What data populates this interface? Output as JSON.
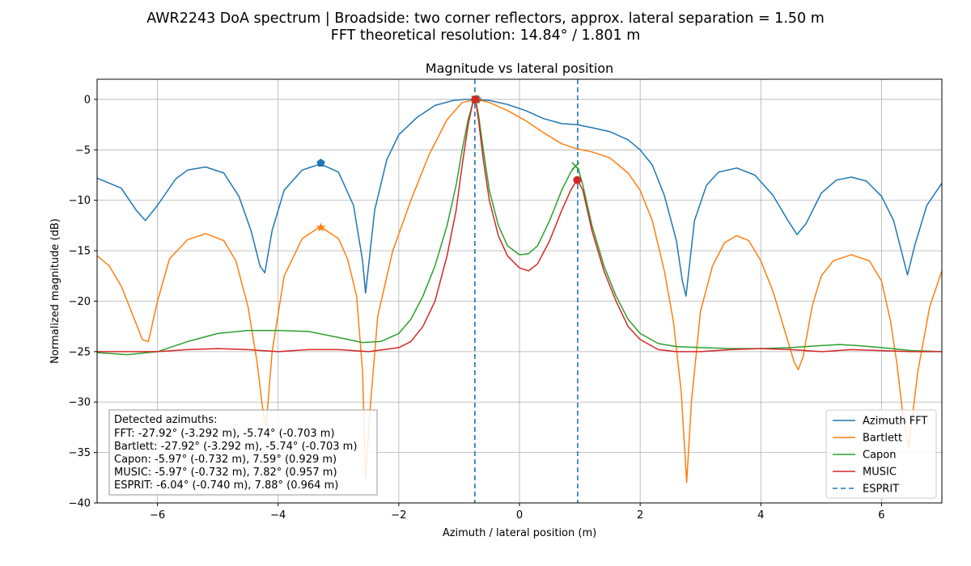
{
  "chart_data": {
    "type": "line",
    "suptitle_line1": "AWR2243 DoA spectrum | Broadside: two corner reflectors, approx. lateral separation = 1.50 m",
    "suptitle_line2": "FFT theoretical resolution: 14.84° / 1.801 m",
    "title": "Magnitude vs lateral position",
    "xlabel": "Azimuth / lateral position (m)",
    "ylabel": "Normalized magnitude (dB)",
    "xlim": [
      -7.0,
      7.0
    ],
    "ylim": [
      -40,
      2
    ],
    "xticks": [
      -6,
      -4,
      -2,
      0,
      2,
      4,
      6
    ],
    "xtick_labels": [
      "−6",
      "−4",
      "−2",
      "0",
      "2",
      "4",
      "6"
    ],
    "yticks": [
      0,
      -5,
      -10,
      -15,
      -20,
      -25,
      -30,
      -35,
      -40
    ],
    "ytick_labels": [
      "0",
      "−5",
      "−10",
      "−15",
      "−20",
      "−25",
      "−30",
      "−35",
      "−40"
    ],
    "grid": true,
    "legend_position": "lower-right",
    "series": [
      {
        "name": "Azimuth FFT",
        "color": "#1f77b4",
        "x": [
          -7.0,
          -6.6,
          -6.35,
          -6.2,
          -6.0,
          -5.7,
          -5.5,
          -5.2,
          -4.9,
          -4.65,
          -4.45,
          -4.3,
          -4.22,
          -4.1,
          -3.9,
          -3.6,
          -3.3,
          -3.0,
          -2.75,
          -2.6,
          -2.55,
          -2.4,
          -2.2,
          -2.0,
          -1.7,
          -1.4,
          -1.1,
          -0.9,
          -0.72,
          -0.5,
          -0.2,
          0.1,
          0.4,
          0.7,
          0.95,
          1.2,
          1.5,
          1.8,
          2.0,
          2.2,
          2.4,
          2.6,
          2.7,
          2.76,
          2.9,
          3.1,
          3.3,
          3.6,
          3.9,
          4.2,
          4.45,
          4.6,
          4.75,
          5.0,
          5.25,
          5.5,
          5.75,
          6.0,
          6.2,
          6.35,
          6.43,
          6.55,
          6.75,
          7.0
        ],
        "y": [
          -7.8,
          -8.8,
          -11.0,
          -12.0,
          -10.5,
          -7.9,
          -7.0,
          -6.7,
          -7.3,
          -9.6,
          -13.0,
          -16.5,
          -17.2,
          -13.0,
          -9.0,
          -7.0,
          -6.4,
          -7.2,
          -10.5,
          -16.0,
          -19.2,
          -11.0,
          -6.0,
          -3.5,
          -1.8,
          -0.6,
          -0.1,
          0.0,
          0.0,
          -0.1,
          -0.5,
          -1.1,
          -1.9,
          -2.4,
          -2.5,
          -2.8,
          -3.2,
          -4.0,
          -5.0,
          -6.5,
          -9.5,
          -14.0,
          -18.0,
          -19.5,
          -12.0,
          -8.5,
          -7.2,
          -6.8,
          -7.5,
          -9.5,
          -12.0,
          -13.4,
          -12.3,
          -9.3,
          -8.0,
          -7.7,
          -8.1,
          -9.6,
          -12.0,
          -15.5,
          -17.4,
          -14.5,
          -10.5,
          -8.3
        ]
      },
      {
        "name": "Bartlett",
        "color": "#ff7f0e",
        "x": [
          -7.0,
          -6.8,
          -6.6,
          -6.4,
          -6.25,
          -6.15,
          -6.0,
          -5.8,
          -5.5,
          -5.2,
          -4.9,
          -4.7,
          -4.5,
          -4.35,
          -4.25,
          -4.2,
          -4.1,
          -3.9,
          -3.6,
          -3.3,
          -3.0,
          -2.85,
          -2.7,
          -2.6,
          -2.55,
          -2.48,
          -2.35,
          -2.1,
          -1.8,
          -1.5,
          -1.2,
          -0.95,
          -0.72,
          -0.5,
          -0.2,
          0.1,
          0.4,
          0.7,
          0.95,
          1.2,
          1.5,
          1.8,
          2.0,
          2.2,
          2.4,
          2.55,
          2.68,
          2.77,
          2.85,
          3.0,
          3.2,
          3.4,
          3.6,
          3.8,
          4.0,
          4.2,
          4.4,
          4.55,
          4.62,
          4.7,
          4.85,
          5.0,
          5.2,
          5.5,
          5.8,
          6.0,
          6.15,
          6.25,
          6.35,
          6.45,
          6.6,
          6.8,
          7.0
        ],
        "y": [
          -15.5,
          -16.5,
          -18.5,
          -21.5,
          -23.8,
          -24.0,
          -20.0,
          -15.8,
          -13.9,
          -13.3,
          -14.0,
          -16.0,
          -20.5,
          -26.0,
          -31.0,
          -32.5,
          -25.0,
          -17.5,
          -13.8,
          -12.6,
          -13.8,
          -15.8,
          -19.5,
          -27.0,
          -37.5,
          -31.0,
          -21.5,
          -15.0,
          -10.0,
          -5.5,
          -2.0,
          -0.3,
          0.0,
          -0.3,
          -1.1,
          -2.1,
          -3.3,
          -4.4,
          -4.9,
          -5.2,
          -5.8,
          -7.3,
          -9.0,
          -12.0,
          -17.0,
          -22.0,
          -29.0,
          -38.0,
          -30.0,
          -21.0,
          -16.5,
          -14.2,
          -13.5,
          -14.0,
          -16.0,
          -19.0,
          -23.0,
          -26.0,
          -26.8,
          -25.5,
          -20.5,
          -17.5,
          -16.0,
          -15.4,
          -16.0,
          -18.0,
          -22.0,
          -26.0,
          -31.0,
          -34.5,
          -27.0,
          -20.5,
          -17.0
        ]
      },
      {
        "name": "Capon",
        "color": "#2ca02c",
        "x": [
          -7.0,
          -6.5,
          -6.0,
          -5.5,
          -5.0,
          -4.5,
          -4.0,
          -3.5,
          -3.0,
          -2.6,
          -2.3,
          -2.0,
          -1.8,
          -1.6,
          -1.4,
          -1.2,
          -1.05,
          -0.95,
          -0.85,
          -0.78,
          -0.73,
          -0.68,
          -0.6,
          -0.5,
          -0.35,
          -0.2,
          0.0,
          0.15,
          0.3,
          0.5,
          0.7,
          0.85,
          0.93,
          0.98,
          1.05,
          1.2,
          1.4,
          1.6,
          1.8,
          2.0,
          2.3,
          2.6,
          3.0,
          3.5,
          4.0,
          4.5,
          5.0,
          5.3,
          5.6,
          6.0,
          6.5,
          7.0
        ],
        "y": [
          -25.1,
          -25.3,
          -25.0,
          -24.0,
          -23.2,
          -22.9,
          -22.9,
          -23.0,
          -23.6,
          -24.1,
          -24.0,
          -23.2,
          -21.8,
          -19.5,
          -16.5,
          -12.5,
          -8.5,
          -5.0,
          -2.0,
          -0.5,
          0.0,
          -1.5,
          -5.0,
          -9.0,
          -12.5,
          -14.5,
          -15.4,
          -15.3,
          -14.5,
          -12.0,
          -9.0,
          -7.2,
          -6.6,
          -7.0,
          -8.5,
          -12.5,
          -16.5,
          -19.5,
          -21.8,
          -23.2,
          -24.2,
          -24.5,
          -24.6,
          -24.7,
          -24.7,
          -24.6,
          -24.4,
          -24.3,
          -24.4,
          -24.6,
          -24.9,
          -25.0
        ]
      },
      {
        "name": "MUSIC",
        "color": "#d62728",
        "x": [
          -7.0,
          -6.0,
          -5.5,
          -5.0,
          -4.5,
          -4.0,
          -3.5,
          -3.0,
          -2.5,
          -2.0,
          -1.8,
          -1.6,
          -1.4,
          -1.2,
          -1.05,
          -0.95,
          -0.85,
          -0.78,
          -0.73,
          -0.68,
          -0.6,
          -0.5,
          -0.35,
          -0.2,
          0.0,
          0.15,
          0.3,
          0.5,
          0.7,
          0.85,
          0.93,
          0.96,
          1.05,
          1.2,
          1.4,
          1.6,
          1.8,
          2.0,
          2.3,
          2.6,
          3.0,
          3.5,
          4.0,
          4.5,
          5.0,
          5.5,
          6.0,
          6.5,
          7.0
        ],
        "y": [
          -25.0,
          -25.0,
          -24.8,
          -24.7,
          -24.8,
          -25.0,
          -24.8,
          -24.8,
          -25.0,
          -24.6,
          -24.0,
          -22.5,
          -20.0,
          -15.5,
          -11.0,
          -6.5,
          -2.5,
          -0.5,
          0.0,
          -2.0,
          -6.0,
          -10.0,
          -13.5,
          -15.5,
          -16.7,
          -17.0,
          -16.3,
          -14.0,
          -11.0,
          -9.0,
          -8.2,
          -8.0,
          -9.0,
          -13.0,
          -17.0,
          -20.0,
          -22.5,
          -23.8,
          -24.8,
          -25.0,
          -25.0,
          -24.8,
          -24.7,
          -24.8,
          -25.0,
          -24.8,
          -24.9,
          -25.0,
          -25.0
        ]
      }
    ],
    "esprit": {
      "name": "ESPRIT",
      "color": "#1f77b4",
      "x": [
        -0.74,
        0.964
      ]
    },
    "markers": [
      {
        "series": "Azimuth FFT",
        "shape": "pentagon",
        "color": "#1f77b4",
        "x": -3.292,
        "y": -6.3
      },
      {
        "series": "Azimuth FFT",
        "shape": "pentagon",
        "color": "#1f77b4",
        "x": -0.703,
        "y": 0.0
      },
      {
        "series": "Bartlett",
        "shape": "star",
        "color": "#ff7f0e",
        "x": -3.292,
        "y": -12.7
      },
      {
        "series": "Bartlett",
        "shape": "star",
        "color": "#ff7f0e",
        "x": -0.703,
        "y": 0.0
      },
      {
        "series": "Capon",
        "shape": "x",
        "color": "#2ca02c",
        "x": -0.732,
        "y": 0.0
      },
      {
        "series": "Capon",
        "shape": "x",
        "color": "#2ca02c",
        "x": 0.929,
        "y": -6.6
      },
      {
        "series": "MUSIC",
        "shape": "circle",
        "color": "#d62728",
        "x": -0.732,
        "y": 0.0
      },
      {
        "series": "MUSIC",
        "shape": "circle",
        "color": "#d62728",
        "x": 0.957,
        "y": -8.0
      }
    ],
    "annotation_lines": [
      "Detected azimuths:",
      "FFT: -27.92° (-3.292 m), -5.74° (-0.703 m)",
      "Bartlett: -27.92° (-3.292 m), -5.74° (-0.703 m)",
      "Capon: -5.97° (-0.732 m), 7.59° (0.929 m)",
      "MUSIC: -5.97° (-0.732 m), 7.82° (0.957 m)",
      "ESPRIT: -6.04° (-0.740 m), 7.88° (0.964 m)"
    ]
  }
}
